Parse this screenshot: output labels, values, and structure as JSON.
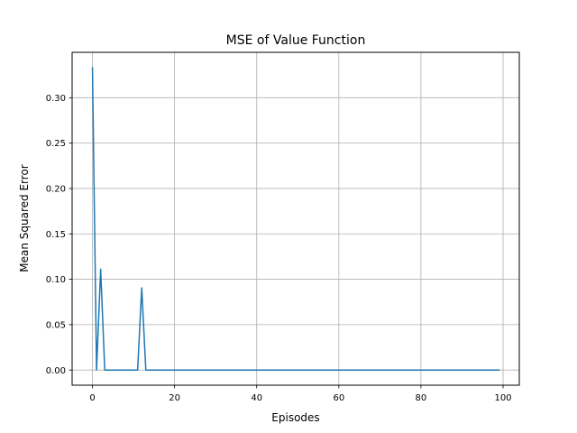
{
  "chart_data": {
    "type": "line",
    "title": "MSE of Value Function",
    "xlabel": "Episodes",
    "ylabel": "Mean Squared Error",
    "xlim": [
      -4.95,
      103.95
    ],
    "ylim": [
      -0.0167,
      0.35
    ],
    "x_ticks": [
      0,
      20,
      40,
      60,
      80,
      100
    ],
    "y_ticks": [
      0.0,
      0.05,
      0.1,
      0.15,
      0.2,
      0.25,
      0.3
    ],
    "x_tick_labels": [
      "0",
      "20",
      "40",
      "60",
      "80",
      "100"
    ],
    "y_tick_labels": [
      "0.00",
      "0.05",
      "0.10",
      "0.15",
      "0.20",
      "0.25",
      "0.30"
    ],
    "grid": true,
    "legend": null,
    "series": [
      {
        "color": "#1f77b4",
        "points": [
          [
            0,
            0.333
          ],
          [
            1,
            0.0
          ],
          [
            2,
            0.111
          ],
          [
            3,
            0.0
          ],
          [
            4,
            0.0
          ],
          [
            5,
            0.0
          ],
          [
            6,
            0.0
          ],
          [
            7,
            0.0
          ],
          [
            8,
            0.0
          ],
          [
            9,
            0.0
          ],
          [
            10,
            0.0
          ],
          [
            11,
            0.0
          ],
          [
            12,
            0.0905
          ],
          [
            13,
            0.0
          ],
          [
            99,
            0.0
          ]
        ]
      }
    ]
  }
}
